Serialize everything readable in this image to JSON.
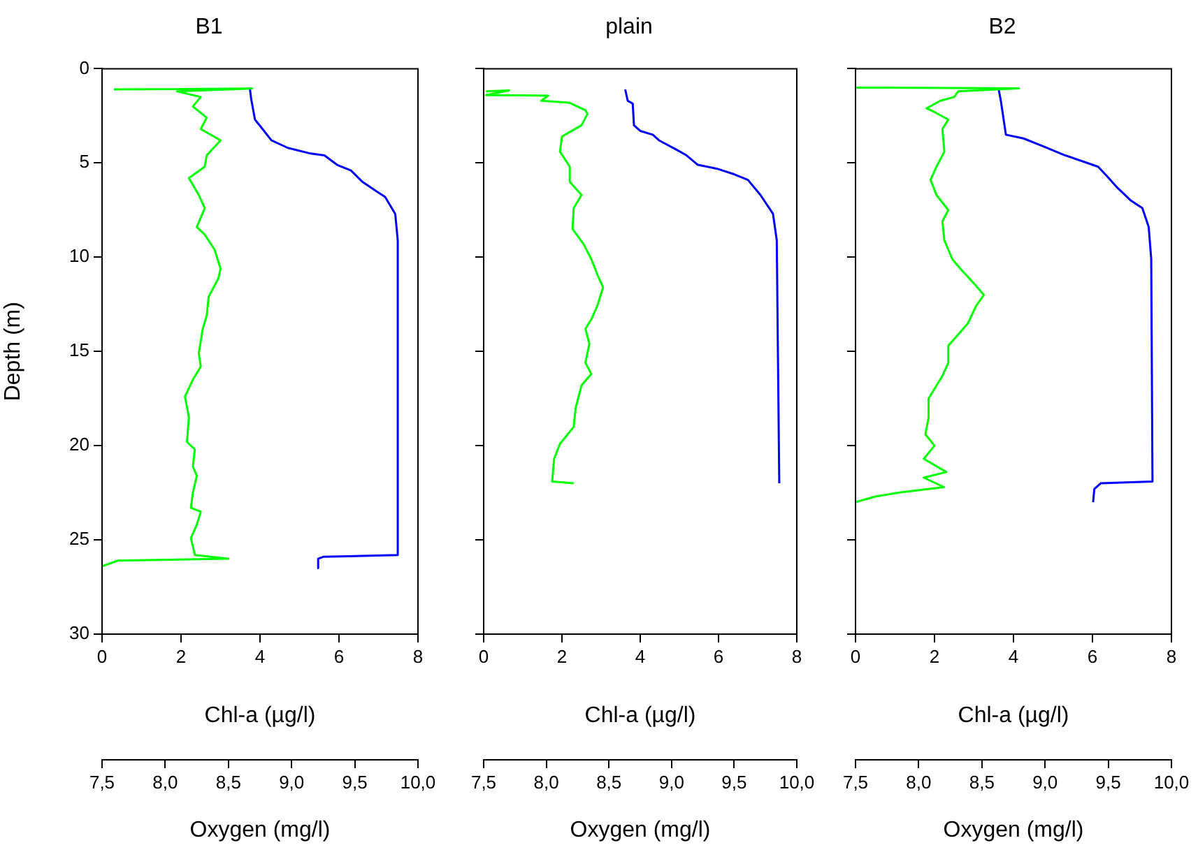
{
  "chart_data": [
    {
      "type": "line",
      "title": "B1",
      "xlabel": "Chl-a (µg/l)",
      "x2label": "Oxygen (mg/l)",
      "ylabel": "Depth (m)",
      "xlim": [
        0,
        8
      ],
      "xticks": [
        0,
        2,
        4,
        6,
        8
      ],
      "x2lim": [
        7.5,
        10.0
      ],
      "x2ticks": [
        {
          "value": 7.5,
          "label": "7,5"
        },
        {
          "value": 8.0,
          "label": "8,0"
        },
        {
          "value": 8.5,
          "label": "8,5"
        },
        {
          "value": 9.0,
          "label": "9,0"
        },
        {
          "value": 9.5,
          "label": "9,5"
        },
        {
          "value": 10.0,
          "label": "10,0"
        }
      ],
      "ylim": [
        30,
        0
      ],
      "yticks": [
        0,
        5,
        10,
        15,
        20,
        25,
        30
      ],
      "series": [
        {
          "color": "#00ff00",
          "x": [
            0.3,
            3.8,
            1.9,
            2.5,
            2.3,
            2.65,
            2.5,
            3.0,
            2.65,
            2.6,
            2.2,
            2.45,
            2.6,
            2.4,
            2.6,
            2.85,
            3.0,
            2.95,
            2.7,
            2.65,
            2.55,
            2.45,
            2.5,
            2.3,
            2.1,
            2.2,
            2.15,
            2.35,
            2.3,
            2.4,
            2.3,
            2.25,
            2.5,
            2.4,
            2.25,
            2.35,
            3.2,
            0.4,
            0.0
          ],
          "values": [
            1.1,
            1.05,
            1.2,
            1.5,
            2.0,
            2.6,
            3.2,
            3.8,
            4.6,
            5.2,
            5.8,
            6.7,
            7.4,
            8.4,
            8.8,
            9.6,
            10.6,
            11.1,
            12.1,
            13.1,
            13.8,
            15.1,
            15.8,
            16.5,
            17.4,
            18.5,
            19.8,
            20.2,
            21.1,
            21.6,
            22.5,
            23.3,
            23.5,
            24.2,
            24.9,
            25.8,
            26.0,
            26.1,
            26.4
          ]
        },
        {
          "color": "#0000ff",
          "axis": "x2",
          "x": [
            8.67,
            8.68,
            8.71,
            8.77,
            8.84,
            8.97,
            9.15,
            9.26,
            9.36,
            9.47,
            9.56,
            9.67,
            9.74,
            9.82,
            9.84,
            9.84,
            9.25,
            9.21,
            9.21
          ],
          "values": [
            1.06,
            1.6,
            2.7,
            3.2,
            3.8,
            4.2,
            4.5,
            4.6,
            5.1,
            5.4,
            6.0,
            6.5,
            6.8,
            7.7,
            9.1,
            25.8,
            25.9,
            26.0,
            26.5
          ]
        }
      ]
    },
    {
      "type": "line",
      "title": "plain",
      "xlabel": "Chl-a (µg/l)",
      "x2label": "Oxygen (mg/l)",
      "xlim": [
        0,
        8
      ],
      "xticks": [
        0,
        2,
        4,
        6,
        8
      ],
      "x2lim": [
        7.5,
        10.0
      ],
      "x2ticks": [
        {
          "value": 7.5,
          "label": "7,5"
        },
        {
          "value": 8.0,
          "label": "8,0"
        },
        {
          "value": 8.5,
          "label": "8,5"
        },
        {
          "value": 9.0,
          "label": "9,0"
        },
        {
          "value": 9.5,
          "label": "9,5"
        },
        {
          "value": 10.0,
          "label": "10,0"
        }
      ],
      "ylim": [
        30,
        0
      ],
      "yticks": [
        0,
        5,
        10,
        15,
        20,
        25,
        30
      ],
      "tick_labels": "x",
      "series": [
        {
          "color": "#00ff00",
          "x": [
            0.06,
            0.65,
            0.06,
            1.65,
            1.47,
            2.18,
            2.6,
            2.65,
            2.5,
            2.0,
            1.95,
            2.2,
            2.2,
            2.5,
            2.3,
            2.27,
            2.55,
            2.75,
            2.9,
            3.05,
            2.9,
            2.75,
            2.6,
            2.7,
            2.6,
            2.75,
            2.5,
            2.35,
            2.3,
            1.95,
            1.8,
            1.75,
            2.3
          ],
          "values": [
            1.2,
            1.15,
            1.4,
            1.43,
            1.7,
            1.8,
            2.2,
            2.4,
            3.0,
            3.6,
            4.4,
            5.2,
            6.0,
            6.7,
            7.4,
            8.5,
            9.3,
            10.1,
            10.9,
            11.6,
            12.6,
            13.3,
            13.8,
            14.6,
            15.6,
            16.2,
            16.8,
            18.0,
            19.0,
            19.9,
            20.7,
            21.9,
            22.0
          ]
        },
        {
          "color": "#0000ff",
          "axis": "x2",
          "x": [
            8.63,
            8.65,
            8.69,
            8.7,
            8.75,
            8.85,
            8.9,
            9.04,
            9.12,
            9.21,
            9.36,
            9.5,
            9.61,
            9.71,
            9.81,
            9.84,
            9.86
          ],
          "values": [
            1.1,
            1.7,
            1.85,
            3.0,
            3.3,
            3.5,
            3.8,
            4.3,
            4.6,
            5.1,
            5.3,
            5.6,
            5.9,
            6.7,
            7.7,
            9.1,
            22.0
          ]
        }
      ]
    },
    {
      "type": "line",
      "title": "B2",
      "xlabel": "Chl-a (µg/l)",
      "x2label": "Oxygen (mg/l)",
      "xlim": [
        0,
        8
      ],
      "xticks": [
        0,
        2,
        4,
        6,
        8
      ],
      "x2lim": [
        7.5,
        10.0
      ],
      "x2ticks": [
        {
          "value": 7.5,
          "label": "7,5"
        },
        {
          "value": 8.0,
          "label": "8,0"
        },
        {
          "value": 8.5,
          "label": "8,5"
        },
        {
          "value": 9.0,
          "label": "9,0"
        },
        {
          "value": 9.5,
          "label": "9,5"
        },
        {
          "value": 10.0,
          "label": "10,0"
        }
      ],
      "ylim": [
        30,
        0
      ],
      "yticks": [
        0,
        5,
        10,
        15,
        20,
        25,
        30
      ],
      "tick_labels": "x",
      "series": [
        {
          "color": "#00ff00",
          "x": [
            0.0,
            4.14,
            2.6,
            2.5,
            2.15,
            1.8,
            2.0,
            2.35,
            2.2,
            2.25,
            2.05,
            1.9,
            2.05,
            2.35,
            2.2,
            2.25,
            2.45,
            2.65,
            3.0,
            3.25,
            3.05,
            2.85,
            2.6,
            2.35,
            2.35,
            2.2,
            1.85,
            1.85,
            1.77,
            2.0,
            1.73,
            2.3,
            1.73,
            2.24,
            1.08,
            0.5,
            0.0
          ],
          "values": [
            1.0,
            1.04,
            1.2,
            1.5,
            1.7,
            2.1,
            2.3,
            2.7,
            3.2,
            4.4,
            5.2,
            5.9,
            6.7,
            7.5,
            8.1,
            9.1,
            10.1,
            10.6,
            11.4,
            12.0,
            12.6,
            13.5,
            14.1,
            14.7,
            15.6,
            16.3,
            17.5,
            18.5,
            19.4,
            20.0,
            20.7,
            21.4,
            21.7,
            22.2,
            22.5,
            22.7,
            23.0
          ]
        },
        {
          "color": "#0000ff",
          "axis": "x2",
          "x": [
            8.63,
            8.65,
            8.69,
            8.83,
            8.98,
            9.16,
            9.42,
            9.49,
            9.57,
            9.68,
            9.77,
            9.82,
            9.84,
            9.85,
            9.44,
            9.39,
            9.38
          ],
          "values": [
            1.0,
            1.7,
            3.5,
            3.7,
            4.1,
            4.6,
            5.2,
            5.7,
            6.3,
            7.0,
            7.4,
            8.4,
            10.1,
            21.9,
            22.0,
            22.3,
            23.0
          ]
        }
      ]
    }
  ]
}
